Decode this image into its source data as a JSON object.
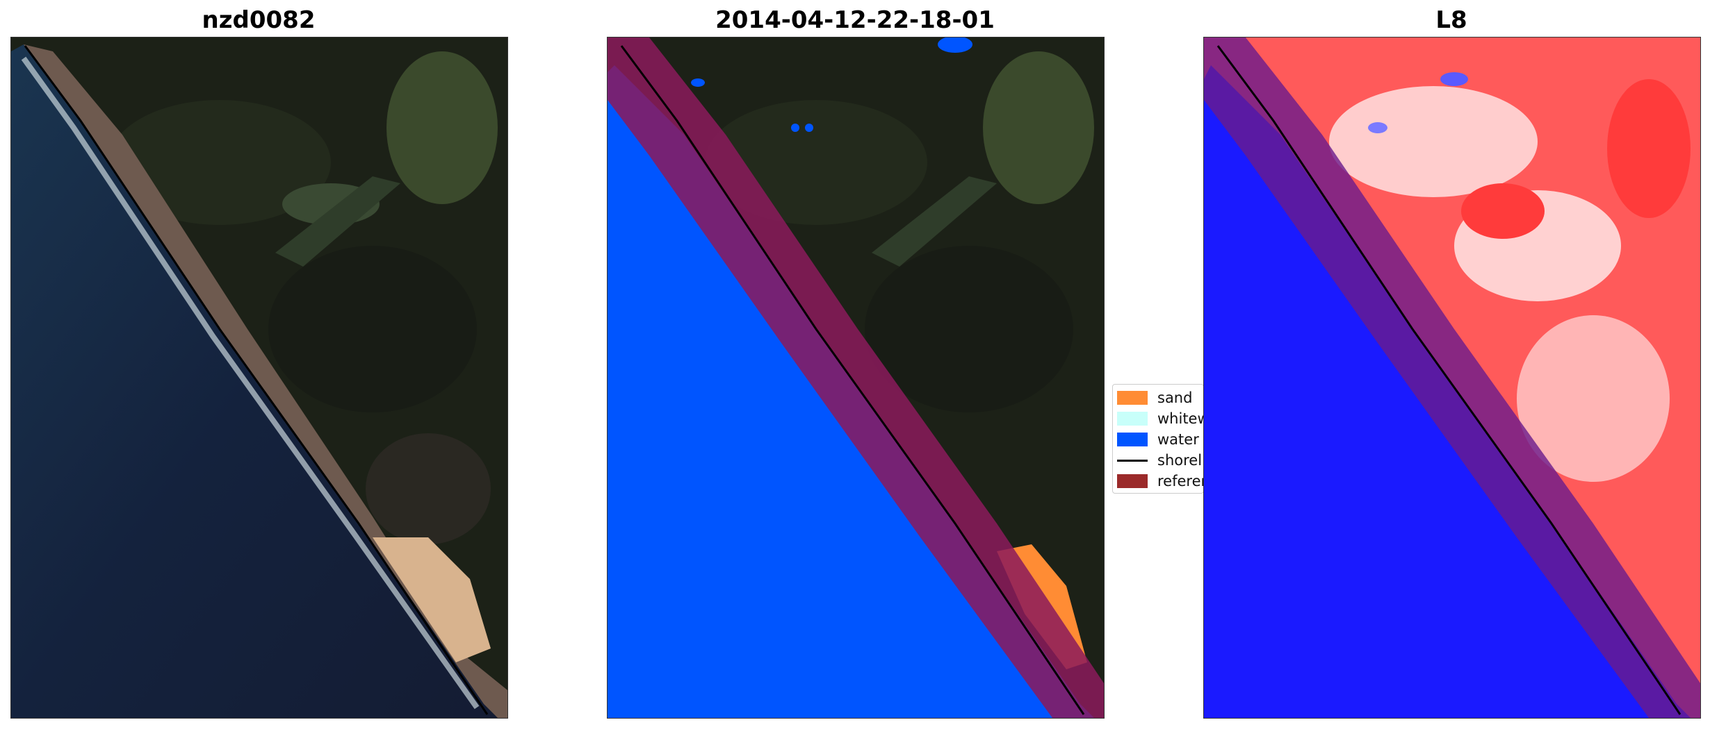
{
  "panels": [
    {
      "title": "nzd0082",
      "kind": "rgb"
    },
    {
      "title": "2014-04-12-22-18-01",
      "kind": "classified"
    },
    {
      "title": "L8",
      "kind": "index"
    }
  ],
  "legend": {
    "items": [
      {
        "label": "sand",
        "color": "#ff8c34",
        "type": "patch"
      },
      {
        "label": "whitewater",
        "color": "#c8fffa",
        "type": "patch"
      },
      {
        "label": "water",
        "color": "#0055ff",
        "type": "patch"
      },
      {
        "label": "shoreline",
        "color": "#000000",
        "type": "line"
      },
      {
        "label": "reference",
        "color": "#9b2a2a",
        "type": "patch"
      }
    ]
  },
  "colors": {
    "ocean_rgb": "#15203a",
    "land_dark": "#1d2218",
    "beach_sand": "#c9a58a",
    "classified_water": "#0055ff",
    "classified_sand": "#ff8c34",
    "reference_buffer": "#8b1a5c",
    "index_water": "#1a1aff",
    "index_land": "#ff4d4d"
  }
}
